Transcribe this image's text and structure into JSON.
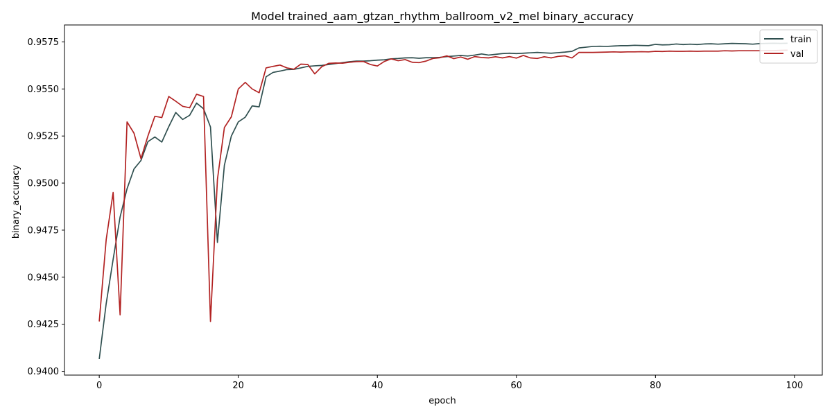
{
  "chart_data": {
    "type": "line",
    "title": "Model trained_aam_gtzan_rhythm_ballroom_v2_mel binary_accuracy",
    "xlabel": "epoch",
    "ylabel": "binary_accuracy",
    "xlim": [
      -5,
      104
    ],
    "ylim": [
      0.9398,
      0.9584
    ],
    "xticks": [
      0,
      20,
      40,
      60,
      80,
      100
    ],
    "yticks": [
      0.94,
      0.9425,
      0.945,
      0.9475,
      0.95,
      0.9525,
      0.955,
      0.9575
    ],
    "ytick_decimals": 4,
    "grid": false,
    "legend_position": "top-right",
    "series": [
      {
        "name": "train",
        "color": "#2f4f4f",
        "values": [
          0.94065,
          0.9436,
          0.94595,
          0.9482,
          0.9497,
          0.95075,
          0.9512,
          0.9522,
          0.95245,
          0.95218,
          0.953,
          0.95375,
          0.95338,
          0.9536,
          0.95425,
          0.95395,
          0.95298,
          0.94685,
          0.95095,
          0.9525,
          0.95325,
          0.9535,
          0.9541,
          0.95405,
          0.95565,
          0.95588,
          0.95595,
          0.95603,
          0.95604,
          0.95612,
          0.9562,
          0.95623,
          0.95625,
          0.9563,
          0.95635,
          0.9564,
          0.95645,
          0.95648,
          0.95648,
          0.9565,
          0.95653,
          0.95655,
          0.9566,
          0.95662,
          0.95665,
          0.95666,
          0.95663,
          0.95666,
          0.95666,
          0.95668,
          0.95672,
          0.95675,
          0.95678,
          0.95675,
          0.9568,
          0.95686,
          0.9568,
          0.95684,
          0.95688,
          0.9569,
          0.95688,
          0.9569,
          0.95692,
          0.95694,
          0.95692,
          0.9569,
          0.95693,
          0.95696,
          0.957,
          0.95718,
          0.95722,
          0.95726,
          0.95727,
          0.95726,
          0.95728,
          0.9573,
          0.9573,
          0.95732,
          0.95731,
          0.9573,
          0.95737,
          0.95734,
          0.95735,
          0.95739,
          0.95736,
          0.95738,
          0.95736,
          0.95739,
          0.9574,
          0.95738,
          0.9574,
          0.95742,
          0.95741,
          0.9574,
          0.95738,
          0.95741,
          0.95742,
          0.95743,
          0.95742,
          0.95743
        ]
      },
      {
        "name": "val",
        "color": "#b22222",
        "values": [
          0.94265,
          0.947,
          0.9495,
          0.943,
          0.95325,
          0.95265,
          0.9513,
          0.9525,
          0.95355,
          0.95348,
          0.9546,
          0.95435,
          0.95408,
          0.954,
          0.95472,
          0.9546,
          0.94265,
          0.9502,
          0.95295,
          0.95352,
          0.955,
          0.95535,
          0.955,
          0.9548,
          0.95612,
          0.9562,
          0.95627,
          0.95612,
          0.95605,
          0.95632,
          0.9563,
          0.9558,
          0.95618,
          0.95636,
          0.95638,
          0.95637,
          0.95642,
          0.95645,
          0.95646,
          0.9563,
          0.95622,
          0.95646,
          0.9566,
          0.9565,
          0.95656,
          0.95642,
          0.9564,
          0.95648,
          0.95662,
          0.95666,
          0.95676,
          0.95661,
          0.9567,
          0.95658,
          0.95672,
          0.95667,
          0.95665,
          0.95671,
          0.95665,
          0.95672,
          0.95664,
          0.95678,
          0.95665,
          0.95662,
          0.95671,
          0.95665,
          0.95673,
          0.95676,
          0.95665,
          0.95694,
          0.95694,
          0.95694,
          0.95695,
          0.95696,
          0.95697,
          0.95696,
          0.95697,
          0.95697,
          0.95698,
          0.95697,
          0.957,
          0.95699,
          0.95701,
          0.957,
          0.957,
          0.95701,
          0.957,
          0.95701,
          0.95701,
          0.95701,
          0.95703,
          0.95702,
          0.95703,
          0.95703,
          0.95703,
          0.95703,
          0.95704,
          0.95704,
          0.95705,
          0.95706
        ]
      }
    ]
  }
}
